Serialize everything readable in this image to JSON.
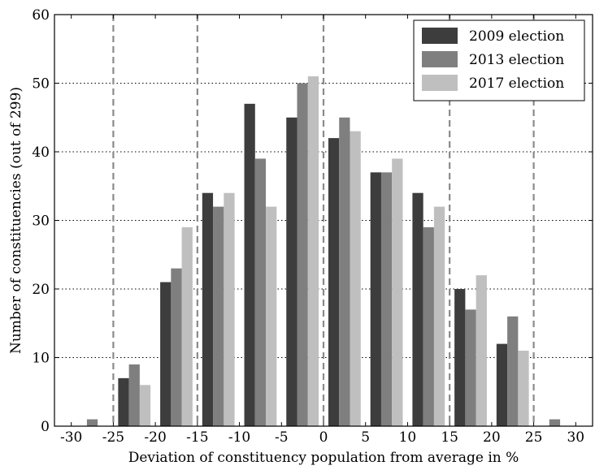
{
  "chart_data": {
    "type": "bar",
    "title": "",
    "xlabel": "Deviation of constituency population from average in %",
    "ylabel": "Number of constituencies (out of 299)",
    "xlim": [
      -32,
      32
    ],
    "ylim": [
      0,
      60
    ],
    "xticks": [
      -30,
      -25,
      -20,
      -15,
      -10,
      -5,
      0,
      5,
      10,
      15,
      20,
      25,
      30
    ],
    "yticks": [
      0,
      10,
      20,
      30,
      40,
      50,
      60
    ],
    "bin_centers": [
      -27.5,
      -22.5,
      -17.5,
      -12.5,
      -7.5,
      -2.5,
      2.5,
      7.5,
      12.5,
      17.5,
      22.5,
      27.5
    ],
    "series": [
      {
        "name": "2009 election",
        "color": "#3d3d3d",
        "values": [
          0,
          7,
          21,
          34,
          47,
          45,
          42,
          37,
          34,
          20,
          12,
          0
        ]
      },
      {
        "name": "2013 election",
        "color": "#7f7f7f",
        "values": [
          1,
          9,
          23,
          32,
          39,
          50,
          45,
          37,
          29,
          17,
          16,
          1
        ]
      },
      {
        "name": "2017 election",
        "color": "#bfbfbf",
        "values": [
          0,
          6,
          29,
          34,
          32,
          51,
          43,
          39,
          32,
          22,
          11,
          0
        ]
      }
    ],
    "vertical_reference_lines": [
      -25,
      -15,
      0,
      15,
      25
    ],
    "horizontal_grid": [
      10,
      20,
      30,
      40,
      50
    ],
    "grid": true,
    "legend_position": "top-right"
  }
}
